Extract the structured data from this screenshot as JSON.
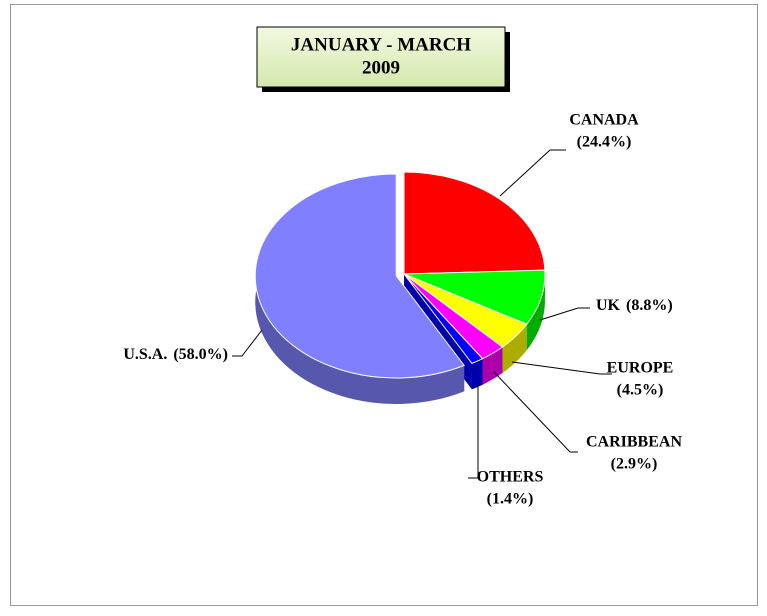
{
  "chart_data": {
    "type": "pie",
    "title": "JANUARY -  MARCH",
    "subtitle": "2009",
    "categories": [
      "CANADA",
      "UK",
      "EUROPE",
      "CARIBBEAN",
      "OTHERS",
      "U.S.A."
    ],
    "values": [
      24.4,
      8.8,
      4.5,
      2.9,
      1.4,
      58.0
    ],
    "value_labels": [
      "(24.4%)",
      "(8.8%)",
      "(4.5%)",
      "(2.9%)",
      "(1.4%)",
      "(58.0%)"
    ],
    "colors": [
      "#ff0000",
      "#00ff00",
      "#ffff00",
      "#ff00ff",
      "#0000ff",
      "#8080ff"
    ]
  }
}
